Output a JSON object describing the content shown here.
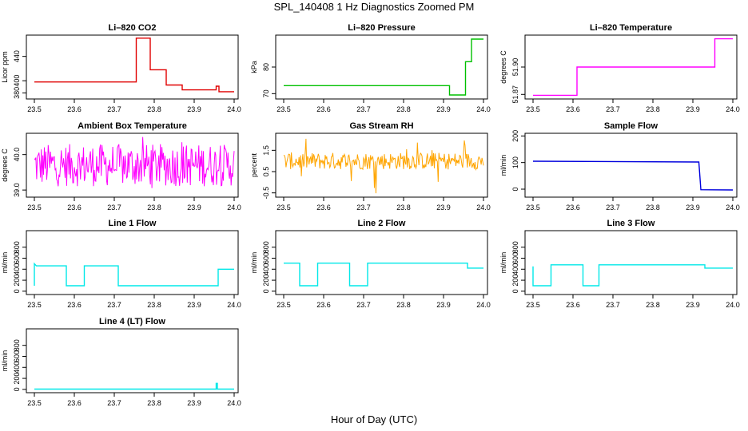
{
  "figure": {
    "title": "SPL_140408  1 Hz Diagnostics Zoomed PM",
    "xlabel": "Hour of Day (UTC)"
  },
  "chart_data": [
    {
      "type": "line",
      "title": "Li–820 CO2",
      "ylabel": "Licor ppm",
      "color": "#e00000",
      "xlim": [
        23.48,
        24.01
      ],
      "ylim": [
        370,
        475
      ],
      "xticks": [
        "23.5",
        "23.6",
        "23.7",
        "23.8",
        "23.9",
        "24.0"
      ],
      "yticks": [
        "380",
        "400",
        "440"
      ],
      "yticks_at": [
        380,
        400,
        440
      ],
      "series": [
        {
          "x": [
            23.5,
            23.755,
            23.755,
            23.79,
            23.79,
            23.83,
            23.83,
            23.87,
            23.87,
            23.955,
            23.955,
            23.962,
            23.962,
            24.0
          ],
          "y": [
            398,
            398,
            470,
            470,
            418,
            418,
            393,
            393,
            385,
            385,
            391,
            391,
            382,
            382
          ]
        }
      ]
    },
    {
      "type": "line",
      "title": "Li–820 Pressure",
      "ylabel": "kPa",
      "color": "#00c000",
      "xlim": [
        23.48,
        24.01
      ],
      "ylim": [
        68,
        92
      ],
      "xticks": [
        "23.5",
        "23.6",
        "23.7",
        "23.8",
        "23.9",
        "24.0"
      ],
      "yticks": [
        "70",
        "80"
      ],
      "yticks_at": [
        70,
        80
      ],
      "series": [
        {
          "x": [
            23.5,
            23.915,
            23.915,
            23.955,
            23.955,
            23.97,
            23.97,
            24.0
          ],
          "y": [
            73,
            73,
            69.5,
            69.5,
            82,
            82,
            90.5,
            90.5
          ]
        }
      ]
    },
    {
      "type": "line",
      "title": "Li–820 Temperature",
      "ylabel": "degrees C",
      "color": "#ff00ff",
      "xlim": [
        23.48,
        24.01
      ],
      "ylim": [
        51.865,
        51.935
      ],
      "xticks": [
        "23.5",
        "23.6",
        "23.7",
        "23.8",
        "23.9",
        "24.0"
      ],
      "yticks": [
        "51.87",
        "51.90"
      ],
      "yticks_at": [
        51.87,
        51.9
      ],
      "series": [
        {
          "x": [
            23.5,
            23.61,
            23.61,
            23.785,
            23.785,
            23.955,
            23.955,
            24.0
          ],
          "y": [
            51.869,
            51.869,
            51.9,
            51.9,
            51.9,
            51.9,
            51.931,
            51.931
          ]
        }
      ]
    },
    {
      "type": "line",
      "title": "Ambient Box Temperature",
      "ylabel": "degrees C",
      "color": "#ff00ff",
      "xlim": [
        23.48,
        24.01
      ],
      "ylim": [
        38.8,
        40.6
      ],
      "xticks": [
        "23.5",
        "23.6",
        "23.7",
        "23.8",
        "23.9",
        "24.0"
      ],
      "yticks": [
        "39.0",
        "40.0"
      ],
      "yticks_at": [
        39.0,
        40.0
      ],
      "series": [
        {
          "noise_band": [
            39.1,
            40.3
          ],
          "x_range": [
            23.5,
            24.0
          ]
        }
      ]
    },
    {
      "type": "line",
      "title": "Gas Stream RH",
      "ylabel": "percent",
      "color": "#ffa500",
      "xlim": [
        23.48,
        24.01
      ],
      "ylim": [
        -0.7,
        2.3
      ],
      "xticks": [
        "23.5",
        "23.6",
        "23.7",
        "23.8",
        "23.9",
        "24.0"
      ],
      "yticks": [
        "-0.5",
        "0.5",
        "1.5"
      ],
      "yticks_at": [
        -0.5,
        0.5,
        1.5
      ],
      "series": [
        {
          "noise_band": [
            0.6,
            1.4
          ],
          "x_range": [
            23.5,
            24.0
          ]
        }
      ]
    },
    {
      "type": "line",
      "title": "Sample Flow",
      "ylabel": "ml/min",
      "color": "#0000dd",
      "xlim": [
        23.48,
        24.01
      ],
      "ylim": [
        -30,
        210
      ],
      "xticks": [
        "23.5",
        "23.6",
        "23.7",
        "23.8",
        "23.9",
        "24.0"
      ],
      "yticks": [
        "0",
        "100",
        "200"
      ],
      "yticks_at": [
        0,
        100,
        200
      ],
      "series": [
        {
          "x": [
            23.5,
            23.915,
            23.915,
            23.92,
            24.0
          ],
          "y": [
            105,
            102,
            102,
            -2,
            -3
          ]
        }
      ]
    },
    {
      "type": "line",
      "title": "Line 1 Flow",
      "ylabel": "ml/min",
      "color": "#00e8e8",
      "xlim": [
        23.48,
        24.01
      ],
      "ylim": [
        -60,
        1100
      ],
      "xticks": [
        "23.5",
        "23.6",
        "23.7",
        "23.8",
        "23.9",
        "24.0"
      ],
      "yticks": [
        "0",
        "200",
        "400",
        "600",
        "800"
      ],
      "yticks_at": [
        0,
        200,
        400,
        600,
        800
      ],
      "series": [
        {
          "x": [
            23.5,
            23.5,
            23.505,
            23.58,
            23.58,
            23.625,
            23.625,
            23.71,
            23.71,
            23.96,
            23.96,
            24.0
          ],
          "y": [
            100,
            500,
            460,
            460,
            100,
            100,
            460,
            460,
            100,
            100,
            400,
            400
          ]
        }
      ]
    },
    {
      "type": "line",
      "title": "Line 2 Flow",
      "ylabel": "ml/min",
      "color": "#00e8e8",
      "xlim": [
        23.48,
        24.01
      ],
      "ylim": [
        -60,
        1100
      ],
      "xticks": [
        "23.5",
        "23.6",
        "23.7",
        "23.8",
        "23.9",
        "24.0"
      ],
      "yticks": [
        "0",
        "200",
        "400",
        "600",
        "800"
      ],
      "yticks_at": [
        0,
        200,
        400,
        600,
        800
      ],
      "series": [
        {
          "x": [
            23.5,
            23.54,
            23.54,
            23.585,
            23.585,
            23.665,
            23.665,
            23.71,
            23.71,
            23.96,
            23.96,
            24.0
          ],
          "y": [
            510,
            510,
            100,
            100,
            510,
            510,
            100,
            100,
            510,
            510,
            420,
            420
          ]
        }
      ]
    },
    {
      "type": "line",
      "title": "Line 3 Flow",
      "ylabel": "ml/min",
      "color": "#00e8e8",
      "xlim": [
        23.48,
        24.01
      ],
      "ylim": [
        -60,
        1100
      ],
      "xticks": [
        "23.5",
        "23.6",
        "23.7",
        "23.8",
        "23.9",
        "24.0"
      ],
      "yticks": [
        "0",
        "200",
        "400",
        "600",
        "800"
      ],
      "yticks_at": [
        0,
        200,
        400,
        600,
        800
      ],
      "series": [
        {
          "x": [
            23.5,
            23.5,
            23.505,
            23.545,
            23.545,
            23.625,
            23.625,
            23.665,
            23.665,
            23.93,
            23.93,
            24.0
          ],
          "y": [
            450,
            100,
            100,
            100,
            480,
            480,
            100,
            100,
            480,
            480,
            420,
            420
          ]
        }
      ]
    },
    {
      "type": "line",
      "title": "Line 4 (LT) Flow",
      "ylabel": "ml/min",
      "color": "#00e8e8",
      "xlim": [
        23.48,
        24.01
      ],
      "ylim": [
        -60,
        1100
      ],
      "xticks": [
        "23.5",
        "23.6",
        "23.7",
        "23.8",
        "23.9",
        "24.0"
      ],
      "yticks": [
        "0",
        "200",
        "400",
        "600",
        "800"
      ],
      "yticks_at": [
        0,
        200,
        400,
        600,
        800
      ],
      "series": [
        {
          "x": [
            23.5,
            23.955,
            23.955,
            23.958,
            23.958,
            24.0
          ],
          "y": [
            5,
            5,
            110,
            110,
            5,
            5
          ]
        }
      ]
    }
  ]
}
